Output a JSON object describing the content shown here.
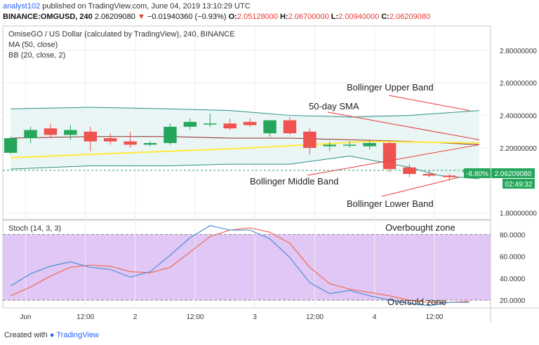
{
  "header": {
    "user": "analyst102",
    "published_text": "published on TradingView.com, June 04, 2019 13:10:29 UTC",
    "symbol_line": "BINANCE:OMGUSD, 240",
    "last": "2.06209080",
    "change_arrow": "▼",
    "change": "−0.01940360 (−0.93%)",
    "o_label": "O:",
    "o_value": "2.05128000",
    "h_label": "H:",
    "h_value": "2.06700000",
    "l_label": "L:",
    "l_value": "2.00940000",
    "c_label": "C:",
    "c_value": "2.06209080"
  },
  "legend": {
    "title": "OmiseGO / US Dollar (calculated by TradingView), 240, BINANCE",
    "ma": "MA (50, close)",
    "bb": "BB (20, close, 2)",
    "stoch": "Stoch (14, 3, 3)"
  },
  "annotations": {
    "upper_band": "Bollinger Upper Band",
    "sma": "50-day SMA",
    "middle_band": "Bollinger Middle Band",
    "lower_band": "Bollinger Lower Band",
    "overbought": "Overbought zone",
    "oversold": "Oversold zone"
  },
  "price_badges": {
    "pct": "-8.80%",
    "price": "2.06209080",
    "countdown": "02:49:32"
  },
  "footer": {
    "created_with": "Created with",
    "brand": "TradingView"
  },
  "colors": {
    "bull": "#26a65b",
    "bear": "#ef5350",
    "ma": "#ffeb3b",
    "bb_basis": "#8b2a2a",
    "bb_band": "#2a8f86",
    "bb_fill": "#eaf6f5",
    "stoch_k": "#4a90d9",
    "stoch_d": "#f0694f",
    "stoch_bg": "#e1c7f5",
    "annotation_line": "#e53935",
    "last_price": "#26a65b"
  },
  "chart_data": [
    {
      "type": "candlestick",
      "title": "OmiseGO / US Dollar (calculated by TradingView), 240, BINANCE",
      "y_ticks": [
        "2.80000000",
        "2.60000000",
        "2.40000000",
        "2.20000000",
        "1.80000000"
      ],
      "y_tick_values": [
        2.8,
        2.6,
        2.4,
        2.2,
        1.8
      ],
      "ylim": [
        1.76,
        2.95
      ],
      "x_ticks": [
        "Jun",
        "12:00",
        "2",
        "12:00",
        "3",
        "12:00",
        "4",
        "12:00"
      ],
      "x_tick_index": [
        1.5,
        7.5,
        12.5,
        18.5,
        24.5,
        30.5,
        36.5,
        42.5
      ],
      "candles": [
        {
          "o": 2.17,
          "h": 2.27,
          "l": 2.16,
          "c": 2.26
        },
        {
          "o": 2.26,
          "h": 2.33,
          "l": 2.23,
          "c": 2.31
        },
        {
          "o": 2.32,
          "h": 2.35,
          "l": 2.26,
          "c": 2.28
        },
        {
          "o": 2.28,
          "h": 2.34,
          "l": 2.25,
          "c": 2.31
        },
        {
          "o": 2.3,
          "h": 2.33,
          "l": 2.18,
          "c": 2.24
        },
        {
          "o": 2.26,
          "h": 2.29,
          "l": 2.22,
          "c": 2.24
        },
        {
          "o": 2.24,
          "h": 2.3,
          "l": 2.2,
          "c": 2.22
        },
        {
          "o": 2.22,
          "h": 2.24,
          "l": 2.21,
          "c": 2.23
        },
        {
          "o": 2.23,
          "h": 2.35,
          "l": 2.22,
          "c": 2.33
        },
        {
          "o": 2.33,
          "h": 2.38,
          "l": 2.31,
          "c": 2.36
        },
        {
          "o": 2.35,
          "h": 2.41,
          "l": 2.33,
          "c": 2.35
        },
        {
          "o": 2.35,
          "h": 2.38,
          "l": 2.31,
          "c": 2.32
        },
        {
          "o": 2.36,
          "h": 2.38,
          "l": 2.33,
          "c": 2.34
        },
        {
          "o": 2.29,
          "h": 2.37,
          "l": 2.27,
          "c": 2.37
        },
        {
          "o": 2.37,
          "h": 2.39,
          "l": 2.28,
          "c": 2.29
        },
        {
          "o": 2.3,
          "h": 2.32,
          "l": 2.16,
          "c": 2.2
        },
        {
          "o": 2.21,
          "h": 2.24,
          "l": 2.18,
          "c": 2.22
        },
        {
          "o": 2.22,
          "h": 2.24,
          "l": 2.2,
          "c": 2.22
        },
        {
          "o": 2.21,
          "h": 2.25,
          "l": 2.19,
          "c": 2.23
        },
        {
          "o": 2.23,
          "h": 2.24,
          "l": 2.05,
          "c": 2.07
        },
        {
          "o": 2.08,
          "h": 2.1,
          "l": 2.02,
          "c": 2.04
        },
        {
          "o": 2.04,
          "h": 2.06,
          "l": 2.02,
          "c": 2.03
        },
        {
          "o": 2.03,
          "h": 2.04,
          "l": 2.0,
          "c": 2.02
        },
        {
          "o": 2.05,
          "h": 2.07,
          "l": 2.01,
          "c": 2.06
        }
      ],
      "candle_index": [
        0,
        2,
        4,
        6,
        8,
        10,
        12,
        14,
        16,
        18,
        20,
        22,
        24,
        26,
        28,
        30,
        32,
        34,
        36,
        38,
        40,
        42,
        44,
        46
      ],
      "ma_50": {
        "x": [
          0,
          47
        ],
        "y": [
          2.14,
          2.24
        ],
        "x_mid": [
          0,
          12,
          24,
          36,
          47
        ],
        "y_mid": [
          2.14,
          2.17,
          2.2,
          2.24,
          2.23
        ]
      },
      "bb_upper": {
        "x": [
          0,
          8,
          16,
          22,
          28,
          34,
          40,
          47
        ],
        "y": [
          2.44,
          2.45,
          2.44,
          2.43,
          2.4,
          2.39,
          2.4,
          2.43
        ]
      },
      "bb_basis": {
        "x": [
          0,
          8,
          16,
          22,
          28,
          34,
          40,
          47
        ],
        "y": [
          2.26,
          2.27,
          2.27,
          2.26,
          2.26,
          2.25,
          2.24,
          2.22
        ]
      },
      "bb_lower": {
        "x": [
          0,
          8,
          16,
          22,
          28,
          34,
          40,
          43,
          47
        ],
        "y": [
          2.07,
          2.09,
          2.09,
          2.1,
          2.1,
          2.15,
          2.08,
          2.03,
          2.01
        ]
      },
      "last_price": 2.0620908
    },
    {
      "type": "line",
      "title": "Stoch (14, 3, 3)",
      "y_ticks": [
        "80.0000",
        "60.0000",
        "40.0000",
        "20.0000"
      ],
      "y_tick_values": [
        80,
        60,
        40,
        20
      ],
      "ylim": [
        13,
        93
      ],
      "bands": [
        20,
        80
      ],
      "series": [
        {
          "name": "%K",
          "x": [
            0,
            2,
            4,
            6,
            8,
            10,
            12,
            14,
            16,
            18,
            20,
            22,
            24,
            26,
            28,
            30,
            32,
            34,
            36,
            38,
            40,
            42,
            44,
            46
          ],
          "y": [
            33,
            44,
            51,
            55,
            50,
            48,
            41,
            46,
            61,
            77,
            88,
            84,
            84,
            76,
            59,
            36,
            26,
            29,
            24,
            20,
            17,
            15,
            18,
            18
          ]
        },
        {
          "name": "%D",
          "x": [
            0,
            2,
            4,
            6,
            8,
            10,
            12,
            14,
            16,
            18,
            20,
            22,
            24,
            26,
            28,
            30,
            32,
            34,
            36,
            38,
            40,
            42,
            44,
            46
          ],
          "y": [
            24,
            32,
            42,
            50,
            52,
            51,
            46,
            45,
            50,
            64,
            78,
            84,
            86,
            82,
            72,
            50,
            35,
            30,
            27,
            24,
            20,
            18,
            18,
            19
          ]
        }
      ]
    }
  ]
}
